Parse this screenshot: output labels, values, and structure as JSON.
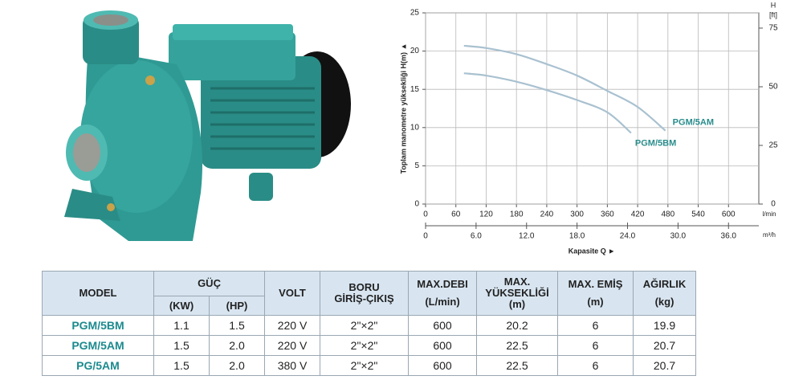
{
  "chart_data": {
    "type": "line",
    "y_label": "Toplam manometre yüksekliği  H(m)  ▲",
    "x_label": "Kapasite Q  ►",
    "x_unit": "l/min",
    "x2_unit": "m³/h",
    "y2_label": "H",
    "y2_unit": "[ft]",
    "xlim": [
      0,
      660
    ],
    "xticks": [
      0,
      60,
      120,
      180,
      240,
      300,
      360,
      420,
      480,
      540,
      600
    ],
    "x2lim": [
      0,
      39.6
    ],
    "x2ticks": [
      0,
      {
        "value": 6,
        "label": "6.0"
      },
      {
        "value": 12,
        "label": "12.0"
      },
      {
        "value": 18,
        "label": "18.0"
      },
      {
        "value": 24,
        "label": "24.0"
      },
      {
        "value": 30,
        "label": "30.0"
      },
      {
        "value": 36,
        "label": "36.0"
      }
    ],
    "ylim": [
      0,
      25
    ],
    "yticks": [
      0,
      5,
      10,
      15,
      20,
      25
    ],
    "y2lim": [
      0,
      81.5
    ],
    "y2ticks": [
      0,
      25,
      50,
      75
    ],
    "grid": true,
    "series": [
      {
        "name": "PGM/5AM",
        "color": "#a9c1d0",
        "label_color": "#2a8c8c",
        "x": [
          76,
          120,
          180,
          240,
          300,
          360,
          420,
          475
        ],
        "values": [
          20.7,
          20.4,
          19.6,
          18.3,
          16.8,
          14.8,
          12.7,
          9.6
        ]
      },
      {
        "name": "PGM/5BM",
        "color": "#a9c1d0",
        "label_color": "#2a8c8c",
        "x": [
          76,
          120,
          180,
          240,
          300,
          360,
          407
        ],
        "values": [
          17.1,
          16.8,
          16.0,
          14.9,
          13.6,
          12.0,
          9.3
        ]
      }
    ]
  },
  "table": {
    "header": {
      "model": "MODEL",
      "power": "GÜÇ",
      "power_kw": "(KW)",
      "power_hp": "(HP)",
      "volt": "VOLT",
      "pipe": [
        "BORU",
        "GİRİŞ-ÇIKIŞ"
      ],
      "flow": [
        "MAX.DEBI",
        "(L/min)"
      ],
      "head": [
        "MAX.",
        "YÜKSEKLİĞİ",
        "(m)"
      ],
      "suction": [
        "MAX. EMİŞ",
        "(m)"
      ],
      "weight": [
        "AĞIRLIK",
        "(kg)"
      ]
    },
    "rows": [
      [
        "PGM/5BM",
        "1.1",
        "1.5",
        "220 V",
        "2\"×2\"",
        "600",
        "20.2",
        "6",
        "19.9"
      ],
      [
        "PGM/5AM",
        "1.5",
        "2.0",
        "220 V",
        "2\"×2\"",
        "600",
        "22.5",
        "6",
        "20.7"
      ],
      [
        "PG/5AM",
        "1.5",
        "2.0",
        "380 V",
        "2\"×2\"",
        "600",
        "22.5",
        "6",
        "20.7"
      ]
    ]
  }
}
